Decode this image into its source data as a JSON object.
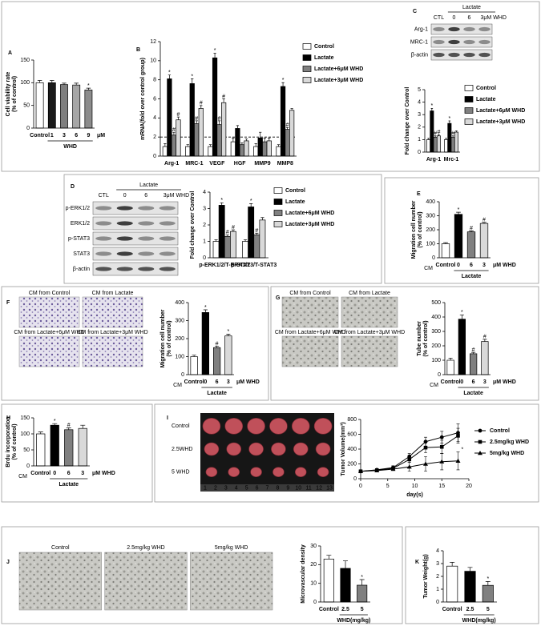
{
  "chart_data": [
    {
      "panel": "A",
      "type": "bar",
      "ylabel": [
        "Cell viability rate",
        "(% of control)"
      ],
      "categories": [
        "Control",
        "1",
        "3",
        "6",
        "9"
      ],
      "series": [
        {
          "colors": [
            "#ffffff",
            "#1a1a1a",
            "#7f7f7f",
            "#a6a6a6",
            "#8c8c8c"
          ],
          "values": [
            100,
            100,
            96,
            95,
            84
          ],
          "errors": [
            5,
            5,
            3,
            4,
            4
          ],
          "marks": [
            null,
            null,
            null,
            null,
            "*"
          ]
        }
      ],
      "ylim": [
        0,
        150
      ],
      "yticks": [
        0,
        50,
        100,
        150
      ],
      "group": "WHD",
      "unit": "μM"
    },
    {
      "panel": "B",
      "type": "bar",
      "ylabel": "mRNA(fold over control group)",
      "categories": [
        "Arg-1",
        "MRC-1",
        "VEGF",
        "HGF",
        "MMP9",
        "MMP8"
      ],
      "series": [
        {
          "name": "Control",
          "color": "#ffffff",
          "values": [
            1,
            1,
            1,
            1.5,
            1,
            1
          ],
          "errors": [
            0.3,
            0.2,
            0.2,
            0.4,
            0.3,
            0.2
          ],
          "marks": [
            null,
            null,
            null,
            null,
            null,
            null
          ]
        },
        {
          "name": "Lactate",
          "color": "#000000",
          "values": [
            8.1,
            7.6,
            10.3,
            2.9,
            1.9,
            7.3
          ],
          "errors": [
            0.4,
            0.5,
            0.5,
            0.3,
            0.6,
            0.4
          ],
          "marks": [
            "*",
            "*",
            "*",
            null,
            null,
            "*"
          ]
        },
        {
          "name": "Lactate+6μM WHD",
          "color": "#808080",
          "values": [
            2.2,
            3.4,
            3.3,
            1.2,
            1.5,
            2.8
          ],
          "errors": [
            0.3,
            0.3,
            0.4,
            0.2,
            0.4,
            0.2
          ],
          "marks": [
            "#",
            "#",
            "#",
            null,
            null,
            "#"
          ]
        },
        {
          "name": "Lactate+3μM WHD",
          "color": "#d9d9d9",
          "values": [
            3.8,
            5.0,
            5.6,
            1.6,
            1.6,
            4.8
          ],
          "errors": [
            0.3,
            0.3,
            0.4,
            0.2,
            0.3,
            0.2
          ],
          "marks": [
            "#",
            "#",
            "#",
            null,
            null,
            null
          ]
        }
      ],
      "ylim": [
        0,
        12
      ],
      "yticks": [
        0,
        2,
        4,
        6,
        8,
        10,
        12
      ],
      "hline": 2
    },
    {
      "panel": "C",
      "type": "bar",
      "blot": {
        "group": "Lactate",
        "lanes": [
          "CTL",
          "0",
          "6",
          "3μM WHD"
        ],
        "rows": [
          "Arg-1",
          "MRC-1",
          "β-actin"
        ]
      },
      "ylabel": "Fold change over Control",
      "categories": [
        "Arg-1",
        "Mrc-1"
      ],
      "series": [
        {
          "name": "Control",
          "color": "#ffffff",
          "values": [
            1,
            1
          ],
          "errors": [
            0.1,
            0.1
          ],
          "marks": [
            null,
            null
          ]
        },
        {
          "name": "Lactate",
          "color": "#000000",
          "values": [
            3.3,
            2.3
          ],
          "errors": [
            0.2,
            0.2
          ],
          "marks": [
            "*",
            "*"
          ]
        },
        {
          "name": "Lactate+6μM WHD",
          "color": "#808080",
          "values": [
            1.2,
            1.2
          ],
          "errors": [
            0.1,
            0.1
          ],
          "marks": [
            "#",
            "#"
          ]
        },
        {
          "name": "Lactate+3μM WHD",
          "color": "#d9d9d9",
          "values": [
            1.3,
            1.6
          ],
          "errors": [
            0.1,
            0.1
          ],
          "marks": [
            "#",
            null
          ]
        }
      ],
      "ylim": [
        0,
        5
      ],
      "yticks": [
        0,
        1,
        2,
        3,
        4,
        5
      ]
    },
    {
      "panel": "D",
      "type": "bar",
      "blot": {
        "group": "Lactate",
        "lanes": [
          "CTL",
          "0",
          "6",
          "3μM WHD"
        ],
        "rows": [
          "p-ERK1/2",
          "ERK1/2",
          "p-STAT3",
          "STAT3",
          "β-actin"
        ]
      },
      "ylabel": "Fold change over Control",
      "categories": [
        "p-ERK1/2/T-ERK1/2",
        "p-STAT3/T-STAT3"
      ],
      "series": [
        {
          "name": "Control",
          "color": "#ffffff",
          "values": [
            1,
            1
          ],
          "errors": [
            0.1,
            0.1
          ],
          "marks": [
            null,
            null
          ]
        },
        {
          "name": "Lactate",
          "color": "#000000",
          "values": [
            3.2,
            3.1
          ],
          "errors": [
            0.15,
            0.2
          ],
          "marks": [
            "*",
            "*"
          ]
        },
        {
          "name": "Lactate+6μM WHD",
          "color": "#808080",
          "values": [
            1.3,
            1.4
          ],
          "errors": [
            0.1,
            0.1
          ],
          "marks": [
            "#",
            "#"
          ]
        },
        {
          "name": "Lactate+3μM WHD",
          "color": "#d9d9d9",
          "values": [
            1.6,
            2.3
          ],
          "errors": [
            0.1,
            0.15
          ],
          "marks": [
            "#",
            null
          ]
        }
      ],
      "ylim": [
        0,
        4
      ],
      "yticks": [
        0,
        1,
        2,
        3,
        4
      ]
    },
    {
      "panel": "E",
      "type": "bar",
      "ylabel": [
        "Migration cell number",
        "(% of control)"
      ],
      "categories": [
        "Control",
        "0",
        "6",
        "3"
      ],
      "series": [
        {
          "colors": [
            "#ffffff",
            "#000000",
            "#808080",
            "#d9d9d9"
          ],
          "values": [
            100,
            310,
            185,
            245
          ],
          "errors": [
            8,
            15,
            8,
            8
          ],
          "marks": [
            null,
            "*",
            "#",
            "#"
          ]
        }
      ],
      "ylim": [
        0,
        400
      ],
      "yticks": [
        0,
        100,
        200,
        300,
        400
      ],
      "prefix": "CM",
      "group": "Lactate",
      "unit": "μM WHD"
    },
    {
      "panel": "F",
      "type": "bar",
      "images": {
        "captions": [
          "CM from Control",
          "CM from Lactate",
          "CM from Lactate+6μM WHD",
          "CM from Lactate+3μM WHD"
        ]
      },
      "ylabel": [
        "Migration cell number",
        "(% of control)"
      ],
      "categories": [
        "Control",
        "0",
        "6",
        "3"
      ],
      "series": [
        {
          "colors": [
            "#ffffff",
            "#000000",
            "#808080",
            "#d9d9d9"
          ],
          "values": [
            100,
            345,
            150,
            215
          ],
          "errors": [
            8,
            15,
            8,
            10
          ],
          "marks": [
            null,
            "*",
            "#",
            "*"
          ]
        }
      ],
      "ylim": [
        0,
        400
      ],
      "yticks": [
        0,
        100,
        200,
        300,
        400
      ],
      "prefix": "CM",
      "group": "Lactate",
      "unit": "μM WHD"
    },
    {
      "panel": "G",
      "type": "bar",
      "images": {
        "captions": [
          "CM from Control",
          "CM from Lactate",
          "CM from Lactate+6μM WHD",
          "CM from Lactate+3μM WHD"
        ]
      },
      "ylabel": [
        "Tube number",
        "(% of control)"
      ],
      "categories": [
        "Control",
        "0",
        "6",
        "3"
      ],
      "series": [
        {
          "colors": [
            "#ffffff",
            "#000000",
            "#808080",
            "#d9d9d9"
          ],
          "values": [
            100,
            385,
            145,
            230
          ],
          "errors": [
            15,
            30,
            10,
            15
          ],
          "marks": [
            null,
            "*",
            "#",
            "#"
          ]
        }
      ],
      "ylim": [
        0,
        500
      ],
      "yticks": [
        0,
        100,
        200,
        300,
        400,
        500
      ],
      "prefix": "CM",
      "group": "Lactate",
      "unit": "μM WHD"
    },
    {
      "panel": "H",
      "type": "bar",
      "ylabel": [
        "Brdu incorporation",
        "(% of control)"
      ],
      "categories": [
        "Control",
        "0",
        "6",
        "3"
      ],
      "series": [
        {
          "colors": [
            "#ffffff",
            "#000000",
            "#808080",
            "#d9d9d9"
          ],
          "values": [
            100,
            127,
            113,
            117
          ],
          "errors": [
            6,
            5,
            6,
            10
          ],
          "marks": [
            null,
            "*",
            "#",
            null
          ]
        }
      ],
      "ylim": [
        0,
        150
      ],
      "yticks": [
        0,
        50,
        100,
        150
      ],
      "prefix": "CM",
      "group": "Lactate",
      "unit": "μM WHD"
    },
    {
      "panel": "I",
      "type": "line",
      "photo": {
        "labels": [
          "Control",
          "2.5WHD",
          "5 WHD"
        ],
        "ruler": [
          1,
          2,
          3,
          4,
          5,
          6,
          7,
          8,
          9,
          10,
          11,
          12,
          13
        ]
      },
      "ylabel": "Tumor Volume(mm³)",
      "xlabel": "day(s)",
      "x": [
        0,
        3,
        6,
        9,
        12,
        15,
        18
      ],
      "xlim": [
        0,
        20
      ],
      "xticks": [
        0,
        5,
        10,
        15,
        20
      ],
      "ylim": [
        0,
        800
      ],
      "yticks": [
        0,
        200,
        400,
        600,
        800
      ],
      "series": [
        {
          "name": "Control",
          "color": "#000000",
          "marker": "circle",
          "values": [
            100,
            120,
            150,
            300,
            500,
            560,
            620
          ],
          "errors": [
            10,
            15,
            25,
            40,
            60,
            80,
            120
          ],
          "marks": [
            null,
            null,
            null,
            null,
            null,
            null,
            null
          ]
        },
        {
          "name": "2.5mg/kg WHD",
          "color": "#000000",
          "marker": "square",
          "values": [
            100,
            115,
            140,
            260,
            420,
            430,
            580
          ],
          "errors": [
            10,
            15,
            25,
            40,
            70,
            90,
            100
          ],
          "marks": [
            null,
            null,
            null,
            null,
            null,
            null,
            null
          ]
        },
        {
          "name": "5mg/kg WHD",
          "color": "#000000",
          "marker": "triangle",
          "values": [
            100,
            110,
            130,
            160,
            200,
            230,
            240
          ],
          "errors": [
            10,
            10,
            20,
            60,
            100,
            110,
            120
          ],
          "marks": [
            null,
            null,
            null,
            null,
            null,
            null,
            "*"
          ]
        }
      ]
    },
    {
      "panel": "J",
      "type": "bar",
      "images": {
        "captions": [
          "Control",
          "2.5mg/kg WHD",
          "5mg/kg WHD"
        ]
      },
      "ylabel": "Microvascular density",
      "categories": [
        "Control",
        "2.5",
        "5"
      ],
      "series": [
        {
          "colors": [
            "#ffffff",
            "#000000",
            "#808080"
          ],
          "values": [
            23,
            18,
            9
          ],
          "errors": [
            2,
            4,
            3
          ],
          "marks": [
            null,
            null,
            "*"
          ]
        }
      ],
      "ylim": [
        0,
        30
      ],
      "yticks": [
        0,
        10,
        20,
        30
      ],
      "group": "WHD(mg/kg)"
    },
    {
      "panel": "K",
      "type": "bar",
      "ylabel": "Tumor Weight(g)",
      "categories": [
        "Control",
        "2.5",
        "5"
      ],
      "series": [
        {
          "colors": [
            "#ffffff",
            "#000000",
            "#808080"
          ],
          "values": [
            2.8,
            2.4,
            1.3
          ],
          "errors": [
            0.3,
            0.3,
            0.3
          ],
          "marks": [
            null,
            null,
            "*"
          ]
        }
      ],
      "ylim": [
        0,
        4
      ],
      "yticks": [
        0,
        1,
        2,
        3,
        4
      ],
      "group": "WHD(mg/kg)"
    }
  ]
}
